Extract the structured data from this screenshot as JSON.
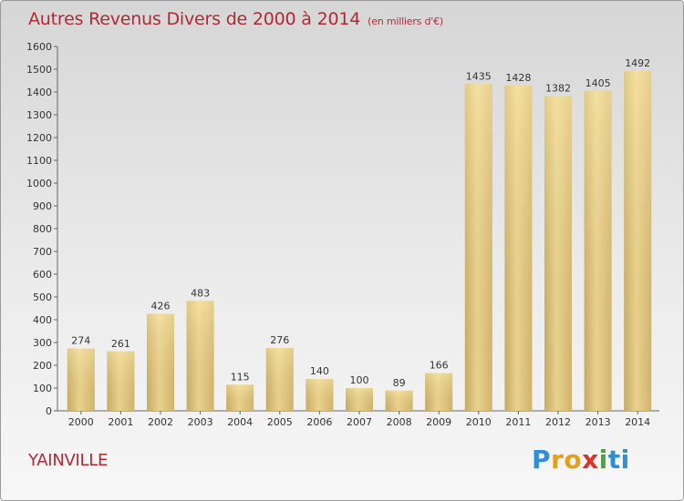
{
  "chart_data": {
    "type": "bar",
    "title": "Autres Revenus Divers de 2000 à 2014",
    "subtitle": "(en milliers d'€)",
    "categories": [
      "2000",
      "2001",
      "2002",
      "2003",
      "2004",
      "2005",
      "2006",
      "2007",
      "2008",
      "2009",
      "2010",
      "2011",
      "2012",
      "2013",
      "2014"
    ],
    "values": [
      274,
      261,
      426,
      483,
      115,
      276,
      140,
      100,
      89,
      166,
      1435,
      1428,
      1382,
      1405,
      1492
    ],
    "ylim": [
      0,
      1600
    ],
    "yticks": [
      0,
      100,
      200,
      300,
      400,
      500,
      600,
      700,
      800,
      900,
      1000,
      1100,
      1200,
      1300,
      1400,
      1500,
      1600
    ],
    "grid": false,
    "bar_color": "#e8cf86"
  },
  "commune": "YAINVILLE",
  "logo": {
    "letters": [
      "P",
      "r",
      "o",
      "x",
      "i",
      "ti"
    ]
  }
}
